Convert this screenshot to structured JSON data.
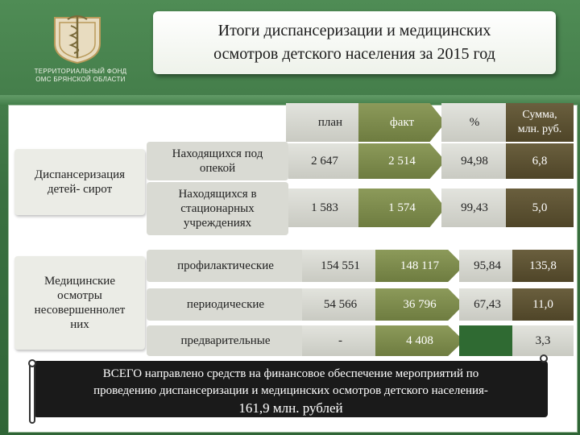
{
  "org_name": [
    "ТЕРРИТОРИАЛЬНЫЙ ФОНД",
    "ОМС БРЯНСКОЙ ОБЛАСТИ"
  ],
  "title": [
    "Итоги диспансеризации и медицинских",
    "осмотров детского населения за 2015 год"
  ],
  "headers": {
    "plan": "план",
    "fact": "факт",
    "percent": "%",
    "sum": [
      "Сумма,",
      "млн. руб."
    ]
  },
  "groups": [
    {
      "label": [
        "Диспансеризация",
        "детей- сирот"
      ]
    },
    {
      "label": [
        "Медицинские",
        "осмотры",
        "несовершеннолет",
        "них"
      ]
    }
  ],
  "rows": [
    {
      "label": [
        "Находящихся под",
        "опекой"
      ],
      "plan": "2 647",
      "fact": "2 514",
      "percent": "94,98",
      "sum": "6,8"
    },
    {
      "label": [
        "Находящихся в",
        "стационарных",
        "учреждениях"
      ],
      "plan": "1 583",
      "fact": "1 574",
      "percent": "99,43",
      "sum": "5,0"
    },
    {
      "label": [
        "профилактические"
      ],
      "plan": "154 551",
      "fact": "148 117",
      "percent": "95,84",
      "sum": "135,8"
    },
    {
      "label": [
        "периодические"
      ],
      "plan": "54 566",
      "fact": "36 796",
      "percent": "67,43",
      "sum": "11,0"
    },
    {
      "label": [
        "предварительные"
      ],
      "plan": "-",
      "fact": "4 408",
      "percent": "",
      "sum": "3,3"
    }
  ],
  "total": [
    "ВСЕГО направлено средств на финансовое обеспечение мероприятий по",
    "проведению диспансеризации и медицинских осмотров детского населения-",
    "161,9 млн. рублей"
  ],
  "colors": {
    "olive": "#7d8b4c",
    "dark_brown": "#5a5033",
    "green_bg": "#3f7a45"
  }
}
